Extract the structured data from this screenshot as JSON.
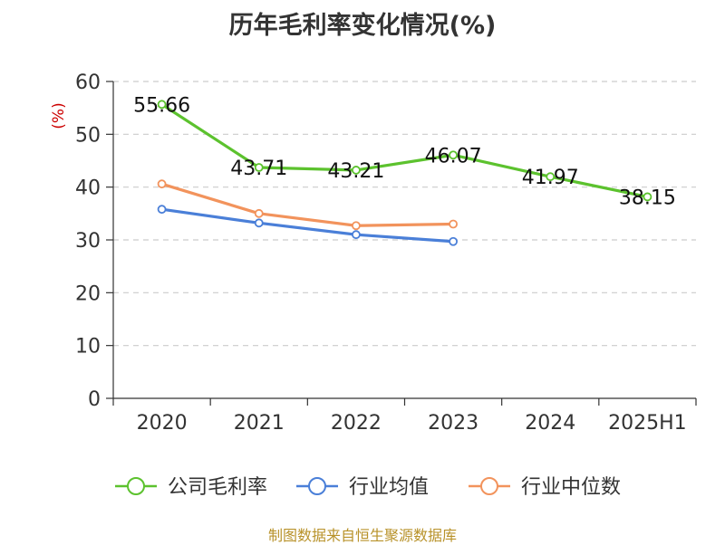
{
  "title": "历年毛利率变化情况(%)",
  "source": "制图数据来自恒生聚源数据库",
  "colors": {
    "company": "#5cc22e",
    "industry_avg": "#4a7fd8",
    "industry_median": "#f2935c",
    "ylabel": "#cc0000",
    "grid": "#cccccc",
    "axis": "#333333"
  },
  "chart_data": {
    "type": "line",
    "title": "历年毛利率变化情况(%)",
    "ylabel": "(%)",
    "xlabel": "",
    "categories": [
      "2020",
      "2021",
      "2022",
      "2023",
      "2024",
      "2025H1"
    ],
    "yticks": [
      "0",
      "10",
      "20",
      "30",
      "40",
      "50",
      "60"
    ],
    "ylim": [
      0,
      60
    ],
    "grid": "horizontal dashed",
    "legend_position": "bottom",
    "series": [
      {
        "name": "公司毛利率",
        "color": "#5cc22e",
        "values": [
          55.66,
          43.71,
          43.21,
          46.07,
          41.97,
          38.15
        ],
        "labels": [
          "55.66",
          "43.71",
          "43.21",
          "46.07",
          "41.97",
          "38.15"
        ]
      },
      {
        "name": "行业均值",
        "color": "#4a7fd8",
        "values": [
          35.8,
          33.2,
          31.0,
          29.7,
          null,
          null
        ]
      },
      {
        "name": "行业中位数",
        "color": "#f2935c",
        "values": [
          40.6,
          35.0,
          32.7,
          33.0,
          null,
          null
        ]
      }
    ]
  }
}
